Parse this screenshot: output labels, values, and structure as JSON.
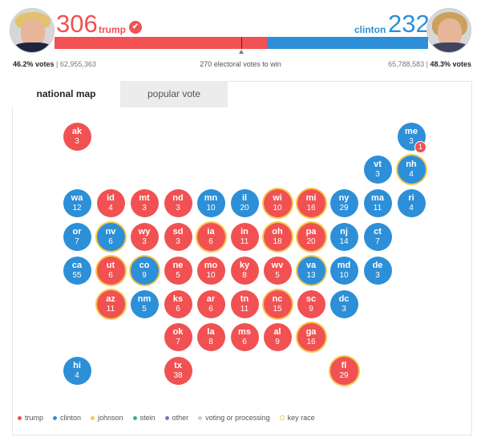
{
  "candidates": {
    "trump": {
      "score": "306",
      "name": "trump",
      "check": "✔",
      "votes_pct": "46.2% votes",
      "votes_num": "62,955,363",
      "color": "#f15152",
      "electoral": 306
    },
    "clinton": {
      "score": "232",
      "name": "clinton",
      "votes_pct": "48.3% votes",
      "votes_num": "65,788,583",
      "color": "#2d8fd7",
      "electoral": 232
    }
  },
  "to_win": "270 electoral votes to win",
  "tabs": [
    {
      "label": "national map",
      "active": true
    },
    {
      "label": "popular vote",
      "active": false
    }
  ],
  "states": [
    {
      "ab": "ak",
      "ev": "3",
      "party": "r",
      "key": false
    },
    {
      "ab": "me",
      "ev": "3",
      "party": "b",
      "key": false
    },
    {
      "ab": "vt",
      "ev": "3",
      "party": "b",
      "key": false
    },
    {
      "ab": "nh",
      "ev": "4",
      "party": "b",
      "key": true
    },
    {
      "ab": "wa",
      "ev": "12",
      "party": "b",
      "key": false
    },
    {
      "ab": "id",
      "ev": "4",
      "party": "r",
      "key": false
    },
    {
      "ab": "mt",
      "ev": "3",
      "party": "r",
      "key": false
    },
    {
      "ab": "nd",
      "ev": "3",
      "party": "r",
      "key": false
    },
    {
      "ab": "mn",
      "ev": "10",
      "party": "b",
      "key": false
    },
    {
      "ab": "il",
      "ev": "20",
      "party": "b",
      "key": false
    },
    {
      "ab": "wi",
      "ev": "10",
      "party": "r",
      "key": true
    },
    {
      "ab": "mi",
      "ev": "16",
      "party": "r",
      "key": true
    },
    {
      "ab": "ny",
      "ev": "29",
      "party": "b",
      "key": false
    },
    {
      "ab": "ma",
      "ev": "11",
      "party": "b",
      "key": false
    },
    {
      "ab": "ri",
      "ev": "4",
      "party": "b",
      "key": false
    },
    {
      "ab": "or",
      "ev": "7",
      "party": "b",
      "key": false
    },
    {
      "ab": "nv",
      "ev": "6",
      "party": "b",
      "key": true
    },
    {
      "ab": "wy",
      "ev": "3",
      "party": "r",
      "key": false
    },
    {
      "ab": "sd",
      "ev": "3",
      "party": "r",
      "key": false
    },
    {
      "ab": "ia",
      "ev": "6",
      "party": "r",
      "key": true
    },
    {
      "ab": "in",
      "ev": "11",
      "party": "r",
      "key": false
    },
    {
      "ab": "oh",
      "ev": "18",
      "party": "r",
      "key": true
    },
    {
      "ab": "pa",
      "ev": "20",
      "party": "r",
      "key": true
    },
    {
      "ab": "nj",
      "ev": "14",
      "party": "b",
      "key": false
    },
    {
      "ab": "ct",
      "ev": "7",
      "party": "b",
      "key": false
    },
    {
      "ab": "ca",
      "ev": "55",
      "party": "b",
      "key": false
    },
    {
      "ab": "ut",
      "ev": "6",
      "party": "r",
      "key": true
    },
    {
      "ab": "co",
      "ev": "9",
      "party": "b",
      "key": true
    },
    {
      "ab": "ne",
      "ev": "5",
      "party": "r",
      "key": false
    },
    {
      "ab": "mo",
      "ev": "10",
      "party": "r",
      "key": false
    },
    {
      "ab": "ky",
      "ev": "8",
      "party": "r",
      "key": false
    },
    {
      "ab": "wv",
      "ev": "5",
      "party": "r",
      "key": false
    },
    {
      "ab": "va",
      "ev": "13",
      "party": "b",
      "key": true
    },
    {
      "ab": "md",
      "ev": "10",
      "party": "b",
      "key": false
    },
    {
      "ab": "de",
      "ev": "3",
      "party": "b",
      "key": false
    },
    {
      "ab": "az",
      "ev": "11",
      "party": "r",
      "key": true
    },
    {
      "ab": "nm",
      "ev": "5",
      "party": "b",
      "key": false
    },
    {
      "ab": "ks",
      "ev": "6",
      "party": "r",
      "key": false
    },
    {
      "ab": "ar",
      "ev": "6",
      "party": "r",
      "key": false
    },
    {
      "ab": "tn",
      "ev": "11",
      "party": "r",
      "key": false
    },
    {
      "ab": "nc",
      "ev": "15",
      "party": "r",
      "key": true
    },
    {
      "ab": "sc",
      "ev": "9",
      "party": "r",
      "key": false
    },
    {
      "ab": "dc",
      "ev": "3",
      "party": "b",
      "key": false
    },
    {
      "ab": "ok",
      "ev": "7",
      "party": "r",
      "key": false
    },
    {
      "ab": "la",
      "ev": "8",
      "party": "r",
      "key": false
    },
    {
      "ab": "ms",
      "ev": "6",
      "party": "r",
      "key": false
    },
    {
      "ab": "al",
      "ev": "9",
      "party": "r",
      "key": false
    },
    {
      "ab": "ga",
      "ev": "16",
      "party": "r",
      "key": true
    },
    {
      "ab": "hi",
      "ev": "4",
      "party": "b",
      "key": false
    },
    {
      "ab": "tx",
      "ev": "38",
      "party": "r",
      "key": false
    },
    {
      "ab": "fl",
      "ev": "29",
      "party": "r",
      "key": true
    }
  ],
  "maine_split_badge": "1",
  "legend": [
    {
      "label": "trump",
      "color": "#f15152"
    },
    {
      "label": "clinton",
      "color": "#2d8fd7"
    },
    {
      "label": "johnson",
      "color": "#f7c94d"
    },
    {
      "label": "stein",
      "color": "#3cb371"
    },
    {
      "label": "other",
      "color": "#8e6bbf"
    },
    {
      "label": "voting or processing",
      "color": "#cccccc"
    },
    {
      "label": "key race",
      "color": "#f7c94d",
      "ring": true
    }
  ]
}
